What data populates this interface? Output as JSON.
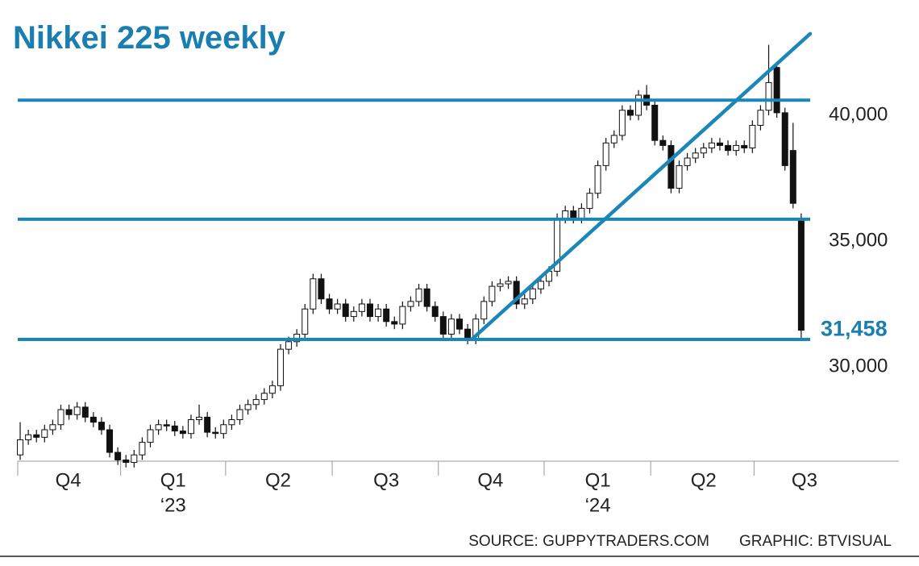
{
  "chart_data": {
    "type": "candlestick",
    "title": "Nikkei 225 weekly",
    "source": "SOURCE: GUPPYTRADERS.COM",
    "credit": "GRAPHIC: BTVISUAL",
    "xlim": [
      -0.3,
      108
    ],
    "ylim": [
      26250,
      43140
    ],
    "yticks": [
      {
        "value": 30000,
        "label": "30,000"
      },
      {
        "value": 35000,
        "label": "35,000"
      },
      {
        "value": 40000,
        "label": "40,000"
      }
    ],
    "xticks": [
      {
        "value": 5.9,
        "label": "Q4"
      },
      {
        "value": 18.8,
        "label": "Q1"
      },
      {
        "value": 31.7,
        "label": "Q2"
      },
      {
        "value": 45,
        "label": "Q3"
      },
      {
        "value": 57.8,
        "label": "Q4"
      },
      {
        "value": 71,
        "label": "Q1"
      },
      {
        "value": 84,
        "label": "Q2"
      },
      {
        "value": 96.4,
        "label": "Q3"
      }
    ],
    "year_labels": [
      {
        "value": 18.8,
        "label": "‘23"
      },
      {
        "value": 71,
        "label": "‘24"
      }
    ],
    "up_color": "#ffffff",
    "down_color": "#111111",
    "line_color": "#1b86b8",
    "levels": [
      40600,
      35870,
      31090
    ],
    "trendline": {
      "x": [
        55.5,
        97.1
      ],
      "y": [
        31090,
        43240
      ]
    },
    "annotation": {
      "value": 31458,
      "label": "31,458"
    },
    "open": [
      26500,
      27100,
      27300,
      27200,
      27500,
      27700,
      28300,
      28100,
      28400,
      28000,
      27800,
      27500,
      26600,
      26300,
      26200,
      26500,
      27000,
      27500,
      27700,
      27650,
      27450,
      27350,
      27900,
      28000,
      27400,
      27350,
      27700,
      27900,
      28300,
      28500,
      28700,
      28950,
      29250,
      30700,
      31000,
      31300,
      32300,
      33500,
      32700,
      32300,
      32500,
      32000,
      32200,
      32500,
      32000,
      32300,
      31800,
      31700,
      32400,
      32600,
      33100,
      32400,
      32000,
      31300,
      31900,
      31500,
      31100,
      31900,
      32600,
      33200,
      33300,
      33400,
      32500,
      32700,
      33100,
      33400,
      33800,
      35900,
      36200,
      35900,
      36300,
      36900,
      38000,
      38900,
      39200,
      40200,
      40000,
      40800,
      40400,
      39000,
      38800,
      37100,
      38000,
      38300,
      38500,
      38700,
      38900,
      38800,
      38600,
      38800,
      38700,
      39600,
      40200,
      41900,
      40100,
      38600,
      35900
    ],
    "high": [
      27800,
      27500,
      27500,
      27700,
      27900,
      28500,
      28500,
      28600,
      28600,
      28200,
      28000,
      27700,
      26800,
      26500,
      26700,
      27200,
      27700,
      27900,
      27900,
      27850,
      27650,
      28100,
      28500,
      28200,
      27600,
      27900,
      28100,
      28500,
      28700,
      28900,
      29150,
      29450,
      30900,
      31200,
      31500,
      32500,
      33700,
      33700,
      32900,
      32700,
      32700,
      32400,
      32700,
      32700,
      32500,
      32500,
      32000,
      32600,
      32800,
      33300,
      33300,
      32600,
      32200,
      32100,
      32100,
      31700,
      32100,
      32800,
      33400,
      33500,
      33600,
      33600,
      32900,
      33300,
      33600,
      34000,
      36100,
      36400,
      36400,
      36500,
      37100,
      38200,
      39100,
      39400,
      40400,
      40400,
      41000,
      41200,
      40600,
      39200,
      39000,
      38200,
      38500,
      38700,
      38900,
      39100,
      39100,
      39000,
      39000,
      39000,
      39800,
      40400,
      42800,
      42100,
      40300,
      39700,
      36100
    ],
    "low": [
      26300,
      26900,
      27000,
      27000,
      27300,
      27500,
      27900,
      27900,
      27800,
      27600,
      27300,
      26400,
      26100,
      26000,
      26000,
      26300,
      26800,
      27300,
      27450,
      27250,
      27150,
      27150,
      27700,
      27200,
      27150,
      27150,
      27500,
      27700,
      28100,
      28300,
      28500,
      28750,
      29050,
      30500,
      30800,
      31100,
      32100,
      32500,
      32100,
      32100,
      31800,
      31800,
      32000,
      31800,
      31800,
      31600,
      31500,
      31500,
      32200,
      32400,
      32200,
      31800,
      31100,
      31100,
      31300,
      30900,
      30900,
      31700,
      32400,
      33000,
      33100,
      32300,
      32300,
      32500,
      32900,
      33200,
      33600,
      35700,
      35700,
      35700,
      36100,
      36700,
      37800,
      38700,
      39000,
      39800,
      39800,
      40200,
      38800,
      38600,
      36900,
      36900,
      37800,
      38100,
      38300,
      38500,
      38600,
      38400,
      38400,
      38500,
      38500,
      39400,
      40000,
      39900,
      37800,
      36300,
      31156
    ],
    "close": [
      27100,
      27300,
      27200,
      27500,
      27700,
      28300,
      28100,
      28400,
      28000,
      27800,
      27500,
      26600,
      26300,
      26200,
      26500,
      27000,
      27500,
      27700,
      27650,
      27450,
      27350,
      27900,
      28000,
      27400,
      27350,
      27700,
      27900,
      28300,
      28500,
      28700,
      28950,
      29250,
      30700,
      31000,
      31300,
      32300,
      33500,
      32700,
      32300,
      32500,
      32000,
      32200,
      32500,
      32000,
      32300,
      31800,
      31700,
      32400,
      32600,
      33100,
      32400,
      32000,
      31300,
      31900,
      31500,
      31100,
      31900,
      32600,
      33200,
      33300,
      33400,
      32500,
      32700,
      33100,
      33400,
      33800,
      35900,
      36200,
      35900,
      36300,
      36900,
      38000,
      38900,
      39200,
      40200,
      40000,
      40800,
      40400,
      39000,
      38800,
      37100,
      38000,
      38300,
      38500,
      38700,
      38900,
      38800,
      38600,
      38800,
      38700,
      39600,
      40200,
      41300,
      40100,
      38000,
      36500,
      31458
    ]
  }
}
